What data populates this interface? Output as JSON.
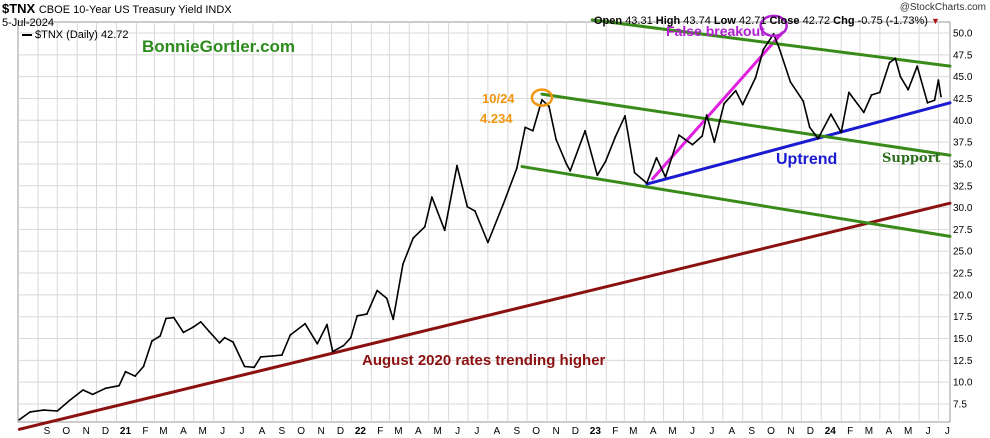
{
  "header": {
    "ticker": "$TNX",
    "description": "CBOE 10-Year US Treasury Yield INDX",
    "date": "5-Jul-2024",
    "legend_label": "$TNX (Daily) 42.72",
    "ohlc": {
      "open_label": "Open",
      "open": "43.31",
      "high_label": "High",
      "high": "43.74",
      "low_label": "Low",
      "low": "42.71",
      "close_label": "Close",
      "close": "42.72",
      "chg_label": "Chg",
      "chg": "-0.75 (-1.73%)"
    },
    "credit": "@StockCharts.com"
  },
  "watermark": "BonnieGortler.com",
  "annotations": {
    "peak_date": "10/24",
    "peak_value": "4.234",
    "false_breakout": "False breakout",
    "uptrend": "Uptrend",
    "support": "Support",
    "august_2020": "August 2020 rates trending higher"
  },
  "chart_data": {
    "type": "line",
    "title": "",
    "series": [
      {
        "name": "$TNX (Daily)",
        "color": "#000000",
        "points": [
          [
            "2020-08-03",
            5.7
          ],
          [
            "2020-08-20",
            6.6
          ],
          [
            "2020-09-10",
            6.8
          ],
          [
            "2020-10-01",
            6.7
          ],
          [
            "2020-10-20",
            7.9
          ],
          [
            "2020-11-10",
            9.1
          ],
          [
            "2020-11-25",
            8.6
          ],
          [
            "2020-12-15",
            9.3
          ],
          [
            "2021-01-05",
            9.6
          ],
          [
            "2021-01-15",
            11.2
          ],
          [
            "2021-01-30",
            10.7
          ],
          [
            "2021-02-12",
            11.8
          ],
          [
            "2021-02-25",
            14.7
          ],
          [
            "2021-03-10",
            15.3
          ],
          [
            "2021-03-19",
            17.3
          ],
          [
            "2021-03-31",
            17.4
          ],
          [
            "2021-04-15",
            15.7
          ],
          [
            "2021-04-30",
            16.3
          ],
          [
            "2021-05-12",
            16.9
          ],
          [
            "2021-05-25",
            15.8
          ],
          [
            "2021-06-10",
            14.5
          ],
          [
            "2021-06-18",
            15.1
          ],
          [
            "2021-07-01",
            14.6
          ],
          [
            "2021-07-19",
            11.8
          ],
          [
            "2021-08-03",
            11.7
          ],
          [
            "2021-08-13",
            12.9
          ],
          [
            "2021-08-31",
            13.0
          ],
          [
            "2021-09-15",
            13.1
          ],
          [
            "2021-09-28",
            15.4
          ],
          [
            "2021-10-21",
            16.7
          ],
          [
            "2021-11-09",
            14.4
          ],
          [
            "2021-11-24",
            16.6
          ],
          [
            "2021-12-03",
            13.5
          ],
          [
            "2021-12-20",
            14.2
          ],
          [
            "2021-12-31",
            15.1
          ],
          [
            "2022-01-10",
            17.6
          ],
          [
            "2022-01-25",
            17.8
          ],
          [
            "2022-02-10",
            20.5
          ],
          [
            "2022-02-25",
            19.6
          ],
          [
            "2022-03-07",
            17.2
          ],
          [
            "2022-03-22",
            23.5
          ],
          [
            "2022-04-07",
            26.5
          ],
          [
            "2022-04-25",
            27.8
          ],
          [
            "2022-05-06",
            31.2
          ],
          [
            "2022-05-26",
            27.4
          ],
          [
            "2022-06-14",
            34.8
          ],
          [
            "2022-06-30",
            30.1
          ],
          [
            "2022-07-12",
            29.6
          ],
          [
            "2022-08-01",
            26.0
          ],
          [
            "2022-08-25",
            30.4
          ],
          [
            "2022-09-15",
            34.5
          ],
          [
            "2022-09-28",
            39.2
          ],
          [
            "2022-10-10",
            38.8
          ],
          [
            "2022-10-24",
            42.34
          ],
          [
            "2022-11-04",
            41.6
          ],
          [
            "2022-11-15",
            37.8
          ],
          [
            "2022-12-01",
            35.0
          ],
          [
            "2022-12-07",
            34.2
          ],
          [
            "2022-12-30",
            38.8
          ],
          [
            "2023-01-18",
            33.7
          ],
          [
            "2023-01-31",
            35.3
          ],
          [
            "2023-02-15",
            38.1
          ],
          [
            "2023-03-02",
            40.5
          ],
          [
            "2023-03-17",
            34.0
          ],
          [
            "2023-04-05",
            32.8
          ],
          [
            "2023-04-20",
            35.7
          ],
          [
            "2023-05-04",
            33.5
          ],
          [
            "2023-05-25",
            38.3
          ],
          [
            "2023-06-15",
            37.2
          ],
          [
            "2023-06-30",
            38.2
          ],
          [
            "2023-07-07",
            40.6
          ],
          [
            "2023-07-19",
            37.5
          ],
          [
            "2023-08-03",
            41.9
          ],
          [
            "2023-08-21",
            43.4
          ],
          [
            "2023-09-01",
            41.8
          ],
          [
            "2023-09-21",
            44.9
          ],
          [
            "2023-10-03",
            48.1
          ],
          [
            "2023-10-19",
            49.9
          ],
          [
            "2023-10-27",
            48.4
          ],
          [
            "2023-11-14",
            44.4
          ],
          [
            "2023-12-04",
            42.2
          ],
          [
            "2023-12-14",
            39.2
          ],
          [
            "2023-12-27",
            37.9
          ],
          [
            "2024-01-16",
            40.7
          ],
          [
            "2024-02-01",
            38.6
          ],
          [
            "2024-02-13",
            43.2
          ],
          [
            "2024-03-07",
            40.9
          ],
          [
            "2024-03-19",
            42.9
          ],
          [
            "2024-04-01",
            43.2
          ],
          [
            "2024-04-16",
            46.6
          ],
          [
            "2024-04-25",
            47.1
          ],
          [
            "2024-05-03",
            45.0
          ],
          [
            "2024-05-15",
            43.5
          ],
          [
            "2024-05-29",
            46.2
          ],
          [
            "2024-06-14",
            42.0
          ],
          [
            "2024-06-25",
            42.3
          ],
          [
            "2024-07-01",
            44.6
          ],
          [
            "2024-07-05",
            42.72
          ]
        ]
      }
    ],
    "trendlines": [
      {
        "label": "august_2020_trend",
        "color": "#8b1010",
        "from": [
          "2020-08-03",
          4.6
        ],
        "to": [
          "2024-07-19",
          30.5
        ]
      },
      {
        "label": "uptrend",
        "color": "#1a1ad0",
        "from": [
          "2023-04-05",
          32.7
        ],
        "to": [
          "2024-07-19",
          42.0
        ]
      },
      {
        "label": "false_breakout_line",
        "color": "#e020e0",
        "from": [
          "2023-04-14",
          33.3
        ],
        "to": [
          "2023-11-01",
          50.0
        ]
      },
      {
        "label": "channel_upper",
        "color": "#3a8a1a",
        "from": [
          "2022-10-24",
          43.0
        ],
        "to": [
          "2024-07-19",
          36.0
        ]
      },
      {
        "label": "channel_lower",
        "color": "#3a8a1a",
        "from": [
          "2022-09-23",
          34.7
        ],
        "to": [
          "2024-07-19",
          26.7
        ]
      },
      {
        "label": "channel_top",
        "color": "#3a8a1a",
        "from": [
          "2023-01-10",
          51.5
        ],
        "to": [
          "2024-07-19",
          46.2
        ]
      }
    ],
    "markers": [
      {
        "label": "10/24 peak",
        "color": "#f0960f",
        "at": [
          "2022-10-24",
          42.6
        ]
      },
      {
        "label": "false breakout",
        "color": "#b020d0",
        "at": [
          "2023-10-19",
          49.9
        ]
      }
    ],
    "y_axis": {
      "position": "right",
      "ylim": [
        5.0,
        51.0
      ],
      "ticks": [
        "50.0",
        "47.5",
        "45.0",
        "42.5",
        "40.0",
        "37.5",
        "35.0",
        "32.5",
        "30.0",
        "27.5",
        "25.0",
        "22.5",
        "20.0",
        "17.5",
        "15.0",
        "12.5",
        "10.0",
        "7.5"
      ]
    },
    "x_axis": {
      "range": [
        "2020-08-01",
        "2024-07-19"
      ],
      "months": [
        {
          "label": "S",
          "date": "2020-09-01"
        },
        {
          "label": "O",
          "date": "2020-10-01"
        },
        {
          "label": "N",
          "date": "2020-11-01"
        },
        {
          "label": "D",
          "date": "2020-12-01"
        },
        {
          "label": "21",
          "date": "2021-01-01",
          "bold": true
        },
        {
          "label": "F",
          "date": "2021-02-01"
        },
        {
          "label": "M",
          "date": "2021-03-01"
        },
        {
          "label": "A",
          "date": "2021-04-01"
        },
        {
          "label": "M",
          "date": "2021-05-01"
        },
        {
          "label": "J",
          "date": "2021-06-01"
        },
        {
          "label": "J",
          "date": "2021-07-01"
        },
        {
          "label": "A",
          "date": "2021-08-01"
        },
        {
          "label": "S",
          "date": "2021-09-01"
        },
        {
          "label": "O",
          "date": "2021-10-01"
        },
        {
          "label": "N",
          "date": "2021-11-01"
        },
        {
          "label": "D",
          "date": "2021-12-01"
        },
        {
          "label": "22",
          "date": "2022-01-01",
          "bold": true
        },
        {
          "label": "F",
          "date": "2022-02-01"
        },
        {
          "label": "M",
          "date": "2022-03-01"
        },
        {
          "label": "A",
          "date": "2022-04-01"
        },
        {
          "label": "M",
          "date": "2022-05-01"
        },
        {
          "label": "J",
          "date": "2022-06-01"
        },
        {
          "label": "J",
          "date": "2022-07-01"
        },
        {
          "label": "A",
          "date": "2022-08-01"
        },
        {
          "label": "S",
          "date": "2022-09-01"
        },
        {
          "label": "O",
          "date": "2022-10-01"
        },
        {
          "label": "N",
          "date": "2022-11-01"
        },
        {
          "label": "D",
          "date": "2022-12-01"
        },
        {
          "label": "23",
          "date": "2023-01-01",
          "bold": true
        },
        {
          "label": "F",
          "date": "2023-02-01"
        },
        {
          "label": "M",
          "date": "2023-03-01"
        },
        {
          "label": "A",
          "date": "2023-04-01"
        },
        {
          "label": "M",
          "date": "2023-05-01"
        },
        {
          "label": "J",
          "date": "2023-06-01"
        },
        {
          "label": "J",
          "date": "2023-07-01"
        },
        {
          "label": "A",
          "date": "2023-08-01"
        },
        {
          "label": "S",
          "date": "2023-09-01"
        },
        {
          "label": "O",
          "date": "2023-10-01"
        },
        {
          "label": "N",
          "date": "2023-11-01"
        },
        {
          "label": "D",
          "date": "2023-12-01"
        },
        {
          "label": "24",
          "date": "2024-01-01",
          "bold": true
        },
        {
          "label": "F",
          "date": "2024-02-01"
        },
        {
          "label": "M",
          "date": "2024-03-01"
        },
        {
          "label": "A",
          "date": "2024-04-01"
        },
        {
          "label": "M",
          "date": "2024-05-01"
        },
        {
          "label": "J",
          "date": "2024-06-01"
        },
        {
          "label": "J",
          "date": "2024-07-01"
        }
      ]
    },
    "grid": true,
    "colors": {
      "price": "#000000",
      "grid": "#d8d8d8",
      "chg_arrow": "#b01010"
    }
  }
}
